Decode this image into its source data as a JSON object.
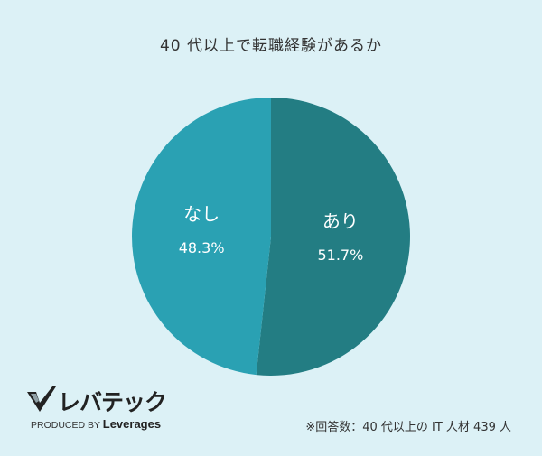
{
  "chart_data": {
    "type": "pie",
    "title": "40 代以上で転職経験があるか",
    "slices": [
      {
        "label": "あり",
        "value": 51.7,
        "value_label": "51.7%",
        "color": "#237d83"
      },
      {
        "label": "なし",
        "value": 48.3,
        "value_label": "48.3%",
        "color": "#2aa1b3"
      }
    ],
    "start": "12 o'clock",
    "direction": "clockwise"
  },
  "footer": {
    "logo_text": "レバテック",
    "produced_by": "PRODUCED BY",
    "brand": "Leverages",
    "note": "※回答数：40 代以上の IT 人材 439 人"
  }
}
